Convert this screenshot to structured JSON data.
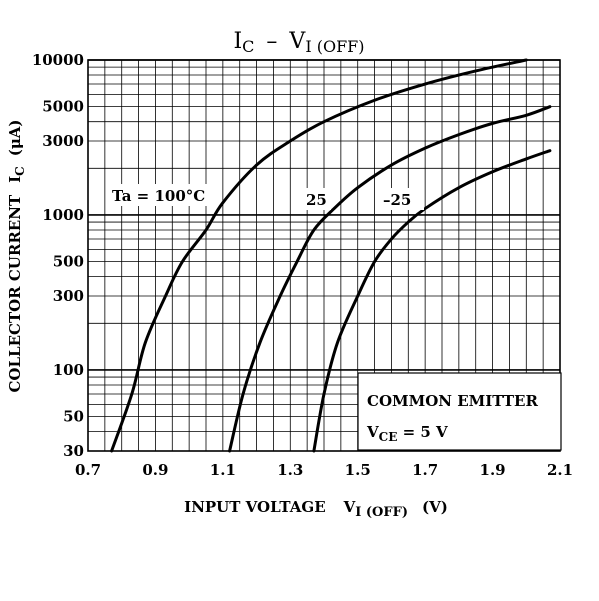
{
  "chart_data": {
    "type": "line",
    "title": {
      "main": "I",
      "main_sub": "C",
      "sep": "–",
      "var": "V",
      "var_sub": "I (OFF)"
    },
    "xaxis": {
      "label": "INPUT VOLTAGE",
      "symbol": "V",
      "symbol_sub": "I (OFF)",
      "unit": "(V)",
      "range": [
        0.7,
        2.1
      ],
      "ticks": [
        "0.7",
        "0.9",
        "1.1",
        "1.3",
        "1.5",
        "1.7",
        "1.9",
        "2.1"
      ],
      "minor_step": 0.05
    },
    "yaxis": {
      "label": "COLLECTOR CURRENT",
      "symbol": "I",
      "symbol_sub": "C",
      "unit": "(μA)",
      "scale": "log",
      "range": [
        30,
        10000
      ],
      "ticks": [
        "10000",
        "5000",
        "3000",
        "1000",
        "500",
        "300",
        "100",
        "50",
        "30"
      ]
    },
    "grid": true,
    "series": [
      {
        "name": "Ta = 100°C",
        "points": [
          [
            0.77,
            30
          ],
          [
            0.83,
            70
          ],
          [
            0.87,
            150
          ],
          [
            0.93,
            300
          ],
          [
            0.98,
            500
          ],
          [
            1.05,
            800
          ],
          [
            1.1,
            1200
          ],
          [
            1.2,
            2100
          ],
          [
            1.3,
            3000
          ],
          [
            1.4,
            4000
          ],
          [
            1.55,
            5500
          ],
          [
            1.7,
            7000
          ],
          [
            1.85,
            8500
          ],
          [
            2.0,
            10000
          ]
        ]
      },
      {
        "name": "25",
        "points": [
          [
            1.12,
            30
          ],
          [
            1.16,
            70
          ],
          [
            1.21,
            150
          ],
          [
            1.27,
            300
          ],
          [
            1.32,
            500
          ],
          [
            1.37,
            800
          ],
          [
            1.43,
            1100
          ],
          [
            1.5,
            1500
          ],
          [
            1.6,
            2100
          ],
          [
            1.7,
            2700
          ],
          [
            1.8,
            3300
          ],
          [
            1.9,
            3900
          ],
          [
            2.0,
            4400
          ],
          [
            2.07,
            5000
          ]
        ]
      },
      {
        "name": "–25",
        "points": [
          [
            1.37,
            30
          ],
          [
            1.4,
            70
          ],
          [
            1.44,
            150
          ],
          [
            1.5,
            300
          ],
          [
            1.55,
            500
          ],
          [
            1.6,
            700
          ],
          [
            1.65,
            900
          ],
          [
            1.7,
            1100
          ],
          [
            1.8,
            1500
          ],
          [
            1.9,
            1900
          ],
          [
            2.0,
            2300
          ],
          [
            2.07,
            2600
          ]
        ]
      }
    ],
    "annotations": {
      "box_line1": "COMMON EMITTER",
      "box_line2_symbol": "V",
      "box_line2_sub": "CE",
      "box_line2_value": " = 5 V"
    },
    "colors": {
      "line": "#000000",
      "background": "#ffffff"
    }
  }
}
